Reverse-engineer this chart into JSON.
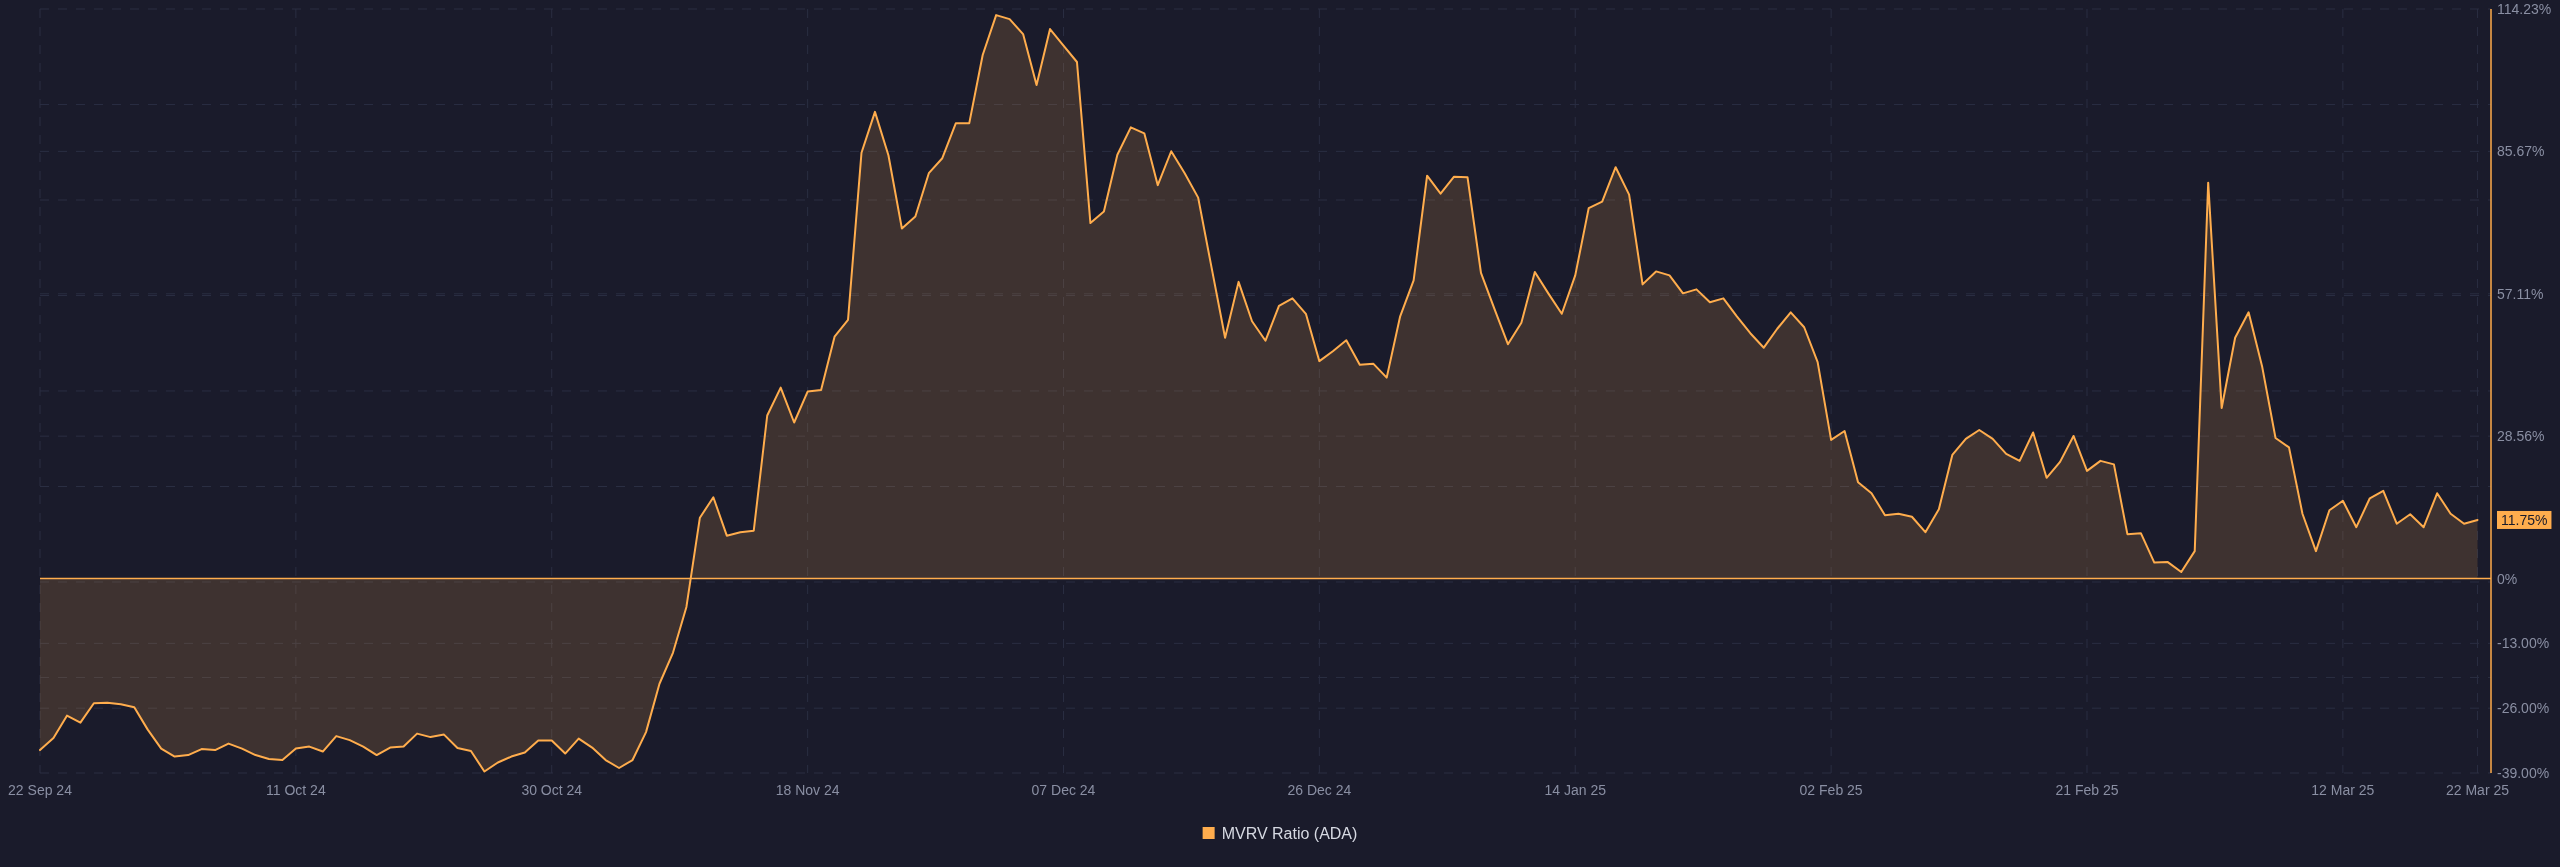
{
  "chart_data": {
    "type": "area",
    "x": [
      "2024-09-22",
      "2024-09-23",
      "2024-09-24",
      "2024-09-25",
      "2024-09-26",
      "2024-09-27",
      "2024-09-28",
      "2024-09-29",
      "2024-09-30",
      "2024-10-01",
      "2024-10-02",
      "2024-10-03",
      "2024-10-04",
      "2024-10-05",
      "2024-10-06",
      "2024-10-07",
      "2024-10-08",
      "2024-10-09",
      "2024-10-10",
      "2024-10-11",
      "2024-10-12",
      "2024-10-13",
      "2024-10-14",
      "2024-10-15",
      "2024-10-16",
      "2024-10-17",
      "2024-10-18",
      "2024-10-19",
      "2024-10-20",
      "2024-10-21",
      "2024-10-22",
      "2024-10-23",
      "2024-10-24",
      "2024-10-25",
      "2024-10-26",
      "2024-10-27",
      "2024-10-28",
      "2024-10-29",
      "2024-10-30",
      "2024-10-31",
      "2024-11-01",
      "2024-11-02",
      "2024-11-03",
      "2024-11-04",
      "2024-11-05",
      "2024-11-06",
      "2024-11-07",
      "2024-11-08",
      "2024-11-09",
      "2024-11-10",
      "2024-11-11",
      "2024-11-12",
      "2024-11-13",
      "2024-11-14",
      "2024-11-15",
      "2024-11-16",
      "2024-11-17",
      "2024-11-18",
      "2024-11-19",
      "2024-11-20",
      "2024-11-21",
      "2024-11-22",
      "2024-11-23",
      "2024-11-24",
      "2024-11-25",
      "2024-11-26",
      "2024-11-27",
      "2024-11-28",
      "2024-11-29",
      "2024-11-30",
      "2024-12-01",
      "2024-12-02",
      "2024-12-03",
      "2024-12-04",
      "2024-12-05",
      "2024-12-06",
      "2024-12-07",
      "2024-12-08",
      "2024-12-09",
      "2024-12-10",
      "2024-12-11",
      "2024-12-12",
      "2024-12-13",
      "2024-12-14",
      "2024-12-15",
      "2024-12-16",
      "2024-12-17",
      "2024-12-18",
      "2024-12-19",
      "2024-12-20",
      "2024-12-21",
      "2024-12-22",
      "2024-12-23",
      "2024-12-24",
      "2024-12-25",
      "2024-12-26",
      "2024-12-27",
      "2024-12-28",
      "2024-12-29",
      "2024-12-30",
      "2024-12-31",
      "2025-01-01",
      "2025-01-02",
      "2025-01-03",
      "2025-01-04",
      "2025-01-05",
      "2025-01-06",
      "2025-01-07",
      "2025-01-08",
      "2025-01-09",
      "2025-01-10",
      "2025-01-11",
      "2025-01-12",
      "2025-01-13",
      "2025-01-14",
      "2025-01-15",
      "2025-01-16",
      "2025-01-17",
      "2025-01-18",
      "2025-01-19",
      "2025-01-20",
      "2025-01-21",
      "2025-01-22",
      "2025-01-23",
      "2025-01-24",
      "2025-01-25",
      "2025-01-26",
      "2025-01-27",
      "2025-01-28",
      "2025-01-29",
      "2025-01-30",
      "2025-01-31",
      "2025-02-01",
      "2025-02-02",
      "2025-02-03",
      "2025-02-04",
      "2025-02-05",
      "2025-02-06",
      "2025-02-07",
      "2025-02-08",
      "2025-02-09",
      "2025-02-10",
      "2025-02-11",
      "2025-02-12",
      "2025-02-13",
      "2025-02-14",
      "2025-02-15",
      "2025-02-16",
      "2025-02-17",
      "2025-02-18",
      "2025-02-19",
      "2025-02-20",
      "2025-02-21",
      "2025-02-22",
      "2025-02-23",
      "2025-02-24",
      "2025-02-25",
      "2025-02-26",
      "2025-02-27",
      "2025-02-28",
      "2025-03-01",
      "2025-03-02",
      "2025-03-03",
      "2025-03-04",
      "2025-03-05",
      "2025-03-06",
      "2025-03-07",
      "2025-03-08",
      "2025-03-09",
      "2025-03-10",
      "2025-03-11",
      "2025-03-12",
      "2025-03-13",
      "2025-03-14",
      "2025-03-15",
      "2025-03-16",
      "2025-03-17",
      "2025-03-18",
      "2025-03-19",
      "2025-03-20",
      "2025-03-21",
      "2025-03-22"
    ],
    "xlim": [
      "2024-09-22",
      "2025-03-23"
    ],
    "xticks": [
      {
        "value": "2024-09-22",
        "label": "22 Sep 24"
      },
      {
        "value": "2024-10-11",
        "label": "11 Oct 24"
      },
      {
        "value": "2024-10-30",
        "label": "30 Oct 24"
      },
      {
        "value": "2024-11-18",
        "label": "18 Nov 24"
      },
      {
        "value": "2024-12-07",
        "label": "07 Dec 24"
      },
      {
        "value": "2024-12-26",
        "label": "26 Dec 24"
      },
      {
        "value": "2025-01-14",
        "label": "14 Jan 25"
      },
      {
        "value": "2025-02-02",
        "label": "02 Feb 25"
      },
      {
        "value": "2025-02-21",
        "label": "21 Feb 25"
      },
      {
        "value": "2025-03-12",
        "label": "12 Mar 25"
      },
      {
        "value": "2025-03-22",
        "label": "22 Mar 25"
      }
    ],
    "ylim": [
      -39,
      114.23
    ],
    "yticks": [
      {
        "value": -39,
        "label": "-39.00%"
      },
      {
        "value": -26,
        "label": "-26.00%"
      },
      {
        "value": -13,
        "label": "-13.00%"
      },
      {
        "value": 0,
        "label": "0%"
      },
      {
        "value": 28.56,
        "label": "28.56%"
      },
      {
        "value": 57.11,
        "label": "57.11%"
      },
      {
        "value": 85.67,
        "label": "85.67%"
      },
      {
        "value": 114.23,
        "label": "114.23%"
      },
      {
        "value": -19.85,
        "label": null
      },
      {
        "value": -0.69,
        "label": null
      },
      {
        "value": 18.46,
        "label": null
      },
      {
        "value": 37.62,
        "label": null
      },
      {
        "value": 56.77,
        "label": null
      },
      {
        "value": 75.92,
        "label": null
      },
      {
        "value": 95.08,
        "label": null
      }
    ],
    "grid": true,
    "legend": "bottom",
    "ref_lines": [
      {
        "axis": "y",
        "value": 0,
        "color": "#ffad4d"
      }
    ],
    "series": [
      {
        "name": "MVRV Ratio (ADA)",
        "color": "#ffad4d",
        "values": [
          -34.4,
          -32.0,
          -27.5,
          -28.9,
          -25.0,
          -24.9,
          -25.2,
          -25.8,
          -30.3,
          -34.1,
          -35.7,
          -35.4,
          -34.2,
          -34.4,
          -33.1,
          -34.1,
          -35.4,
          -36.2,
          -36.4,
          -34.1,
          -33.7,
          -34.7,
          -31.6,
          -32.4,
          -33.7,
          -35.4,
          -33.9,
          -33.7,
          -31.1,
          -31.8,
          -31.3,
          -34.0,
          -34.6,
          -38.7,
          -36.9,
          -35.7,
          -34.9,
          -32.5,
          -32.5,
          -35.1,
          -32.1,
          -33.9,
          -36.4,
          -38.0,
          -36.4,
          -30.8,
          -21.1,
          -14.9,
          -5.7,
          12.2,
          16.3,
          8.6,
          9.3,
          9.6,
          32.7,
          38.3,
          31.3,
          37.5,
          37.8,
          48.5,
          51.9,
          85.4,
          93.6,
          84.9,
          70.2,
          72.6,
          81.3,
          84.3,
          91.3,
          91.3,
          105.0,
          113.0,
          112.2,
          109.2,
          99.0,
          110.2,
          106.9,
          103.6,
          71.3,
          73.6,
          85.0,
          90.5,
          89.3,
          78.9,
          85.7,
          81.3,
          76.4,
          62.3,
          48.3,
          59.5,
          51.6,
          47.7,
          54.7,
          56.2,
          53.1,
          43.6,
          45.6,
          47.8,
          42.9,
          43.1,
          40.3,
          52.6,
          59.8,
          80.8,
          77.2,
          80.6,
          80.5,
          61.3,
          54.1,
          47.0,
          51.3,
          61.5,
          57.2,
          53.1,
          60.8,
          74.3,
          75.6,
          82.5,
          77.0,
          59.0,
          61.6,
          60.8,
          57.2,
          58.0,
          55.4,
          56.2,
          52.6,
          49.2,
          46.3,
          50.1,
          53.4,
          50.4,
          43.4,
          27.8,
          29.6,
          19.3,
          17.1,
          12.7,
          13.0,
          12.4,
          9.3,
          13.9,
          24.8,
          28.0,
          29.8,
          28.0,
          25.0,
          23.6,
          29.3,
          20.2,
          23.4,
          28.6,
          21.6,
          23.6,
          22.9,
          8.9,
          9.1,
          3.2,
          3.3,
          1.3,
          5.5,
          79.4,
          34.2,
          48.3,
          53.4,
          42.6,
          28.2,
          26.3,
          13.0,
          5.5,
          13.7,
          15.6,
          10.3,
          16.1,
          17.6,
          11.0,
          12.9,
          10.3,
          17.1,
          13.0,
          11.0,
          11.75
        ],
        "value_labels": [
          null,
          null,
          null,
          null,
          null,
          null,
          null,
          null,
          null,
          null,
          null,
          null,
          null,
          null,
          null,
          null,
          null,
          null,
          null,
          null,
          null,
          null,
          null,
          null,
          null,
          null,
          null,
          null,
          null,
          null,
          null,
          null,
          null,
          null,
          null,
          null,
          null,
          null,
          null,
          null,
          null,
          null,
          null,
          null,
          null,
          null,
          null,
          null,
          null,
          null,
          null,
          null,
          null,
          null,
          null,
          null,
          null,
          null,
          null,
          null,
          null,
          null,
          null,
          null,
          null,
          null,
          null,
          null,
          null,
          null,
          null,
          null,
          null,
          null,
          null,
          null,
          null,
          null,
          null,
          null,
          null,
          null,
          null,
          null,
          null,
          null,
          null,
          null,
          null,
          null,
          null,
          null,
          null,
          null,
          null,
          null,
          null,
          null,
          null,
          null,
          null,
          null,
          null,
          null,
          null,
          null,
          null,
          null,
          null,
          null,
          null,
          null,
          null,
          null,
          null,
          null,
          null,
          null,
          null,
          null,
          null,
          null,
          null,
          null,
          null,
          null,
          null,
          null,
          null,
          null,
          null,
          null,
          null,
          null,
          null,
          null,
          null,
          null,
          null,
          null,
          null,
          null,
          null,
          null,
          null,
          null,
          null,
          null,
          null,
          null,
          null,
          null,
          null,
          null,
          null,
          null,
          null,
          null,
          null,
          null,
          null,
          null,
          null,
          null,
          null,
          null,
          null,
          null,
          null,
          null,
          null,
          null,
          null,
          null,
          null,
          null,
          null,
          null,
          null,
          null,
          null,
          "11.75%"
        ]
      }
    ]
  }
}
